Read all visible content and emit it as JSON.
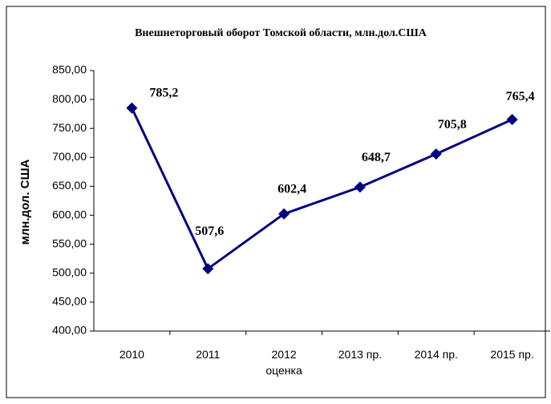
{
  "chart_data": {
    "type": "line",
    "title": "Внешнеторговый оборот Томской области, млн.дол.США",
    "y_label": "млн.дол. США",
    "categories": [
      "2010",
      "2011",
      "2012\nоценка",
      "2013 пр.",
      "2014 пр.",
      "2015 пр."
    ],
    "series": [
      {
        "name": "Внешнеторговый оборот",
        "color": "#000080",
        "values": [
          785.2,
          507.6,
          602.4,
          648.7,
          705.8,
          765.4
        ],
        "value_labels": [
          "785,2",
          "507,6",
          "602,4",
          "648,7",
          "705,8",
          "765,4"
        ]
      }
    ],
    "ylim": [
      400,
      850
    ],
    "yticks": [
      {
        "value": 400,
        "label": "400,00"
      },
      {
        "value": 450,
        "label": "450,00"
      },
      {
        "value": 500,
        "label": "500,00"
      },
      {
        "value": 550,
        "label": "550,00"
      },
      {
        "value": 600,
        "label": "600,00"
      },
      {
        "value": 650,
        "label": "650,00"
      },
      {
        "value": 700,
        "label": "700,00"
      },
      {
        "value": 750,
        "label": "750,00"
      },
      {
        "value": 800,
        "label": "800,00"
      },
      {
        "value": 850,
        "label": "850,00"
      }
    ]
  }
}
